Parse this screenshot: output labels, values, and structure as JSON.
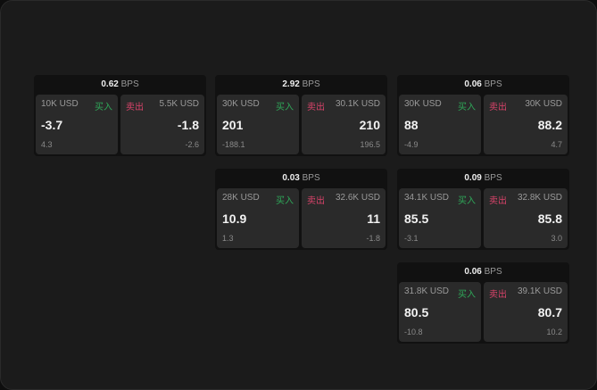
{
  "colors": {
    "buy": "#2fa859",
    "sell": "#d9436a",
    "background": "#1b1b1b"
  },
  "labels": {
    "buy": "买入",
    "sell": "卖出",
    "unit": "BPS"
  },
  "cards": [
    {
      "spread": "0.62",
      "bid_size": "10K USD",
      "bid": "-3.7",
      "bid_change": "4.3",
      "ask_size": "5.5K USD",
      "ask": "-1.8",
      "ask_change": "-2.6"
    },
    {
      "spread": "2.92",
      "bid_size": "30K USD",
      "bid": "201",
      "bid_change": "-188.1",
      "ask_size": "30.1K USD",
      "ask": "210",
      "ask_change": "196.5"
    },
    {
      "spread": "0.06",
      "bid_size": "30K USD",
      "bid": "88",
      "bid_change": "-4.9",
      "ask_size": "30K USD",
      "ask": "88.2",
      "ask_change": "4.7"
    },
    {
      "spread": "0.03",
      "bid_size": "28K USD",
      "bid": "10.9",
      "bid_change": "1.3",
      "ask_size": "32.6K USD",
      "ask": "11",
      "ask_change": "-1.8"
    },
    {
      "spread": "0.09",
      "bid_size": "34.1K USD",
      "bid": "85.5",
      "bid_change": "-3.1",
      "ask_size": "32.8K USD",
      "ask": "85.8",
      "ask_change": "3.0"
    },
    {
      "spread": "0.06",
      "bid_size": "31.8K USD",
      "bid": "80.5",
      "bid_change": "-10.8",
      "ask_size": "39.1K USD",
      "ask": "80.7",
      "ask_change": "10.2"
    }
  ]
}
